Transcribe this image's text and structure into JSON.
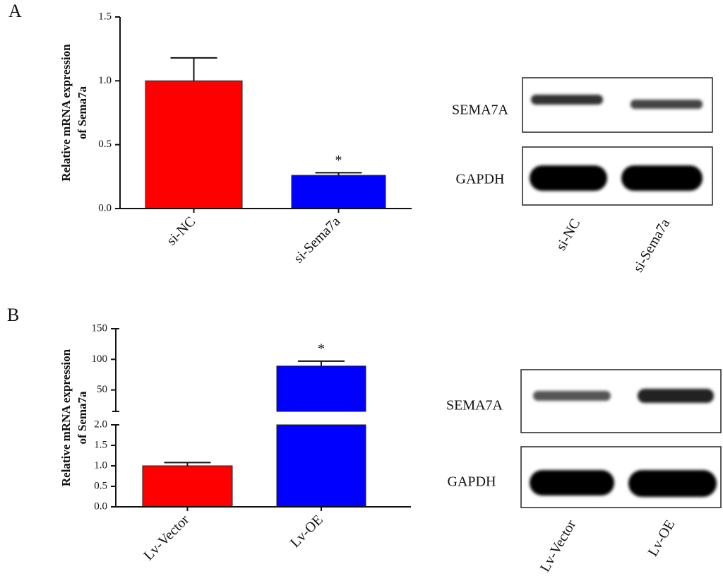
{
  "panel_labels": [
    "A",
    "B"
  ],
  "blots": [
    {
      "rows": [
        "SEMA7A",
        "GAPDH"
      ],
      "lanes": [
        "si-NC",
        "si-Sema7a"
      ]
    },
    {
      "rows": [
        "SEMA7A",
        "GAPDH"
      ],
      "lanes": [
        "Lv-Vector",
        "Lv-OE"
      ]
    }
  ],
  "chart_data": [
    {
      "type": "bar",
      "y_label": [
        "Relative mRNA expression",
        "of Sema7a"
      ],
      "categories": [
        "si-NC",
        "si-Sema7a"
      ],
      "values": [
        1.0,
        0.26
      ],
      "errors": [
        0.18,
        0.02
      ],
      "significance": [
        null,
        "*"
      ],
      "colors": [
        "#ff0000",
        "#0000ff"
      ],
      "ylim": [
        0,
        1.5
      ],
      "yticks": [
        {
          "value": 0,
          "label": "0.0"
        },
        0.5,
        {
          "value": 1,
          "label": "1.0"
        },
        1.5
      ]
    },
    {
      "type": "bar",
      "y_label": [
        "Relative mRNA expression",
        "of Sema7a"
      ],
      "categories": [
        "Lv-Vector",
        "Lv-OE"
      ],
      "values": [
        1.0,
        89
      ],
      "errors": [
        0.08,
        8
      ],
      "significance": [
        null,
        "*"
      ],
      "colors": [
        "#ff0000",
        "#0000ff"
      ],
      "segments": [
        {
          "ylim": [
            0,
            2
          ],
          "yticks": [
            {
              "value": 0,
              "label": "0.0"
            },
            0.5,
            {
              "value": 1,
              "label": "1.0"
            },
            1.5,
            {
              "value": 2,
              "label": "2.0"
            }
          ]
        },
        {
          "ylim": [
            15,
            150
          ],
          "yticks": [
            50,
            100,
            150
          ]
        }
      ]
    }
  ]
}
